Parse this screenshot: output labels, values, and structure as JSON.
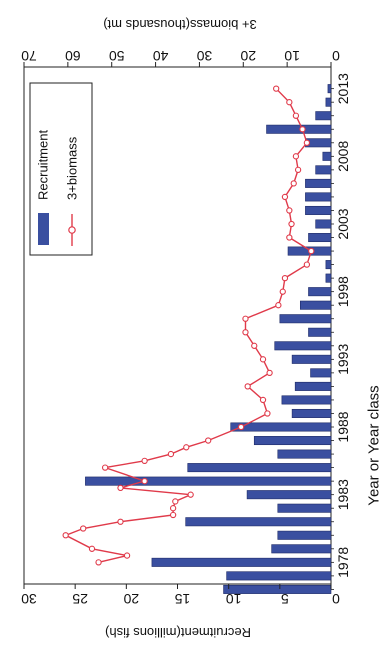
{
  "chart_data": {
    "type": "bar",
    "orientation": "rotated-90-clockwise",
    "categories": [
      "1976",
      "1977",
      "1978",
      "1979",
      "1980",
      "1981",
      "1982",
      "1983",
      "1984",
      "1985",
      "1986",
      "1987",
      "1988",
      "1989",
      "1990",
      "1991",
      "1992",
      "1993",
      "1994",
      "1995",
      "1996",
      "1997",
      "1998",
      "1999",
      "2000",
      "2001",
      "2002",
      "2003",
      "2004",
      "2005",
      "2006",
      "2007",
      "2008",
      "2009",
      "2010",
      "2011",
      "2012",
      "2013"
    ],
    "x_tick_labels": [
      "1978",
      "1983",
      "1988",
      "1993",
      "1998",
      "2003",
      "2008",
      "2013"
    ],
    "xlabel": "Year or Year class",
    "ylabel_left": "Recruitment(millions fish)",
    "ylabel_right": "3+ biomass(thousands mt)",
    "ylim_left": [
      0,
      30
    ],
    "ylim_right": [
      0,
      70
    ],
    "yticks_left": [
      "0",
      "5",
      "10",
      "15",
      "20",
      "25",
      "30"
    ],
    "yticks_right": [
      "0",
      "10",
      "20",
      "30",
      "40",
      "50",
      "60",
      "70"
    ],
    "legend_position": "top-right (rotated)",
    "series": [
      {
        "name": "Recruitment",
        "kind": "bar",
        "axis": "left",
        "color": "#3a4fa0",
        "values": [
          10.5,
          10.2,
          17.5,
          5.8,
          5.2,
          14.2,
          5.2,
          8.2,
          24.0,
          14.0,
          5.2,
          7.5,
          9.8,
          3.8,
          4.8,
          3.5,
          2.0,
          3.8,
          5.5,
          2.2,
          5.0,
          3.0,
          2.2,
          0.5,
          0.5,
          4.2,
          2.2,
          1.5,
          2.5,
          2.5,
          2.5,
          1.5,
          0.8,
          2.5,
          6.3,
          1.5,
          0.5,
          0.3
        ]
      },
      {
        "name": "3+biomass",
        "kind": "line",
        "axis": "right",
        "color": "#e03a4a",
        "values": [
          53.0,
          46.5,
          54.5,
          60.5,
          56.5,
          48.0,
          36.0,
          36.0,
          35.5,
          32.0,
          48.0,
          42.5,
          51.5,
          42.5,
          36.5,
          33.0,
          28.0,
          20.5,
          14.5,
          15.5,
          19.0,
          14.0,
          15.5,
          17.5,
          19.5,
          19.5,
          12.0,
          11.0,
          10.5,
          5.5,
          4.5,
          9.5,
          9.0,
          9.5,
          10.5,
          8.5,
          7.5,
          8.0,
          5.5,
          6.5,
          8.0,
          9.5,
          12.5
        ],
        "x": [
          1978.0,
          1978.5,
          1979.0,
          1980.0,
          1980.5,
          1981.0,
          1981.5,
          1982.0,
          1982.5,
          1983.0,
          1983.5,
          1984.0,
          1985.0,
          1985.5,
          1986.0,
          1986.5,
          1987.0,
          1988.0,
          1989.0,
          1990.0,
          1991.0,
          1992.0,
          1993.0,
          1994.0,
          1995.0,
          1996.0,
          1997.0,
          1998.0,
          1999.0,
          2000.0,
          2001.0,
          2002.0,
          2003.0,
          2004.0,
          2005.0,
          2006.0,
          2007.0,
          2008.0,
          2009.0,
          2010.0,
          2011.0,
          2012.0,
          2013.0
        ]
      }
    ],
    "grid": false
  }
}
